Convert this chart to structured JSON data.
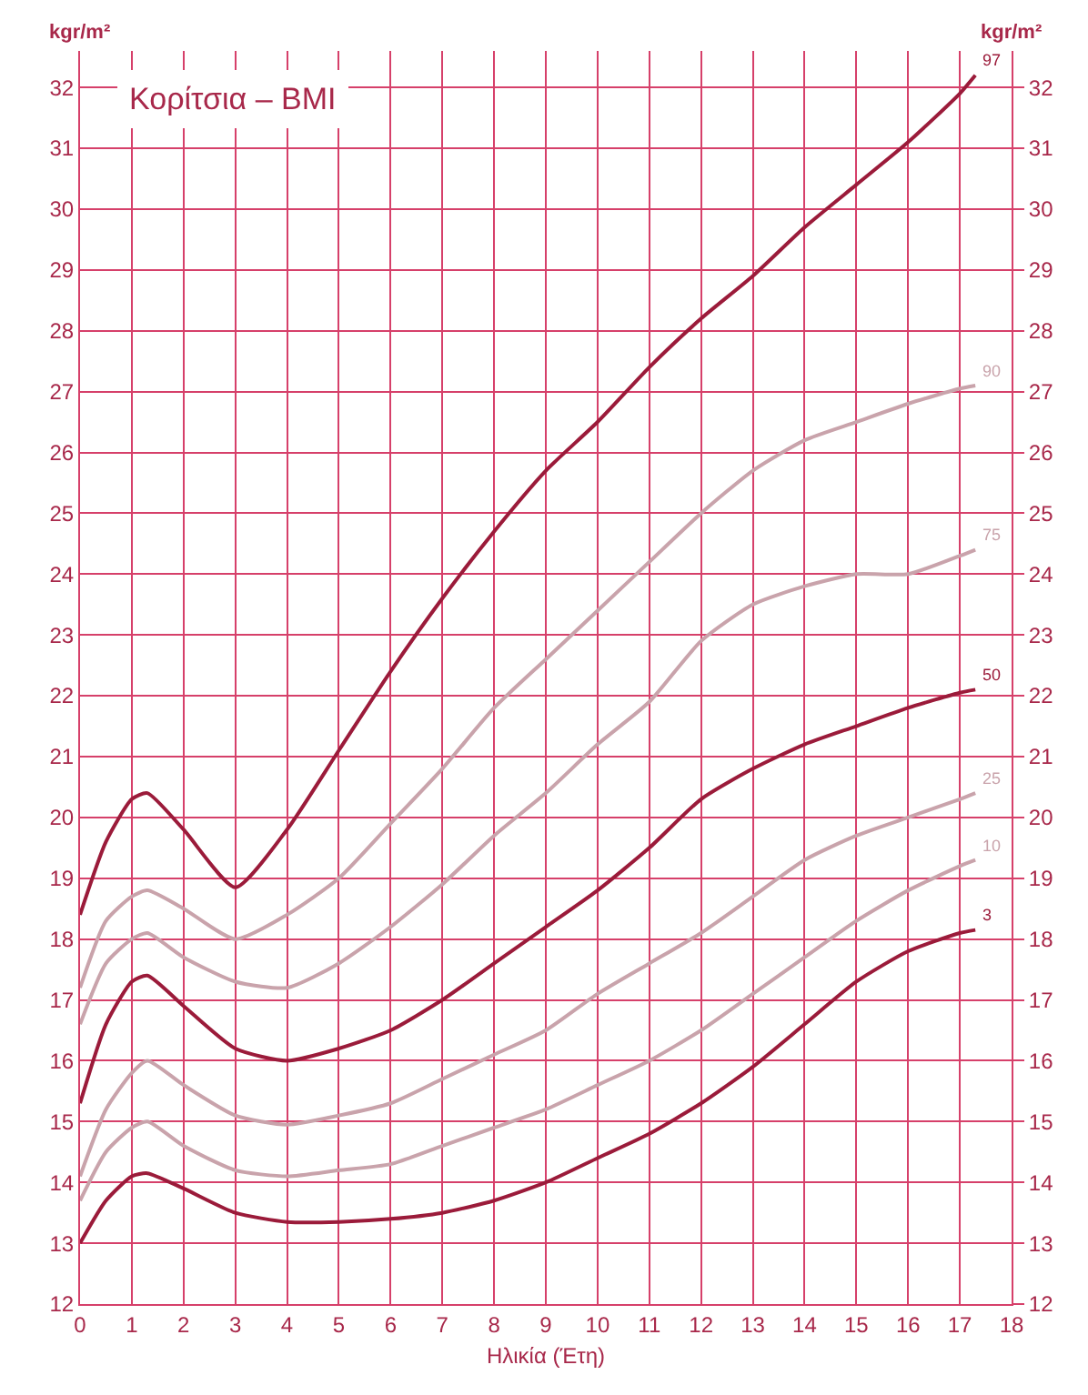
{
  "chart_data": {
    "type": "line",
    "title": "Κορίτσια – BMI",
    "xlabel": "Ηλικία (Έτη)",
    "ylabel": "kgr/m²",
    "y2label": "kgr/m²",
    "x": [
      0,
      0.5,
      1,
      1.3,
      2,
      3,
      4,
      5,
      6,
      7,
      8,
      9,
      10,
      11,
      12,
      13,
      14,
      15,
      16,
      17,
      17.3
    ],
    "xlim": [
      0,
      18
    ],
    "xticks": [
      0,
      1,
      2,
      3,
      4,
      5,
      6,
      7,
      8,
      9,
      10,
      11,
      12,
      13,
      14,
      15,
      16,
      17,
      18
    ],
    "ylim": [
      12,
      32.6
    ],
    "yticks": [
      12,
      13,
      14,
      15,
      16,
      17,
      18,
      19,
      20,
      21,
      22,
      23,
      24,
      25,
      26,
      27,
      28,
      29,
      30,
      31,
      32
    ],
    "y2lim": [
      12,
      32.6
    ],
    "y2ticks": [
      12,
      13,
      14,
      15,
      16,
      17,
      18,
      19,
      20,
      21,
      22,
      23,
      24,
      25,
      26,
      27,
      28,
      29,
      30,
      31,
      32
    ],
    "grid": true,
    "legend": false,
    "marker": "none",
    "line_style": "solid",
    "series": [
      {
        "name": "97",
        "color": "#9b1b3a",
        "values": [
          18.4,
          19.6,
          20.3,
          20.4,
          19.8,
          18.85,
          19.8,
          21.1,
          22.4,
          23.6,
          24.7,
          25.7,
          26.5,
          27.4,
          28.2,
          28.9,
          29.7,
          30.4,
          31.1,
          31.9,
          32.2
        ]
      },
      {
        "name": "90",
        "color": "#c9a3ab",
        "values": [
          17.2,
          18.3,
          18.7,
          18.8,
          18.5,
          18.0,
          18.4,
          19.0,
          19.9,
          20.8,
          21.8,
          22.6,
          23.4,
          24.2,
          25.0,
          25.7,
          26.2,
          26.5,
          26.8,
          27.05,
          27.1
        ]
      },
      {
        "name": "75",
        "color": "#c9a3ab",
        "values": [
          16.6,
          17.6,
          18.0,
          18.1,
          17.7,
          17.3,
          17.2,
          17.6,
          18.2,
          18.9,
          19.7,
          20.4,
          21.2,
          21.9,
          22.9,
          23.5,
          23.8,
          24.0,
          24.0,
          24.3,
          24.4
        ]
      },
      {
        "name": "50",
        "color": "#9b1b3a",
        "values": [
          15.3,
          16.6,
          17.3,
          17.4,
          16.9,
          16.2,
          16.0,
          16.2,
          16.5,
          17.0,
          17.6,
          18.2,
          18.8,
          19.5,
          20.3,
          20.8,
          21.2,
          21.5,
          21.8,
          22.05,
          22.1
        ]
      },
      {
        "name": "25",
        "color": "#c9a3ab",
        "values": [
          14.1,
          15.2,
          15.8,
          16.0,
          15.6,
          15.1,
          14.95,
          15.1,
          15.3,
          15.7,
          16.1,
          16.5,
          17.1,
          17.6,
          18.1,
          18.7,
          19.3,
          19.7,
          20.0,
          20.3,
          20.4
        ]
      },
      {
        "name": "10",
        "color": "#c9a3ab",
        "values": [
          13.7,
          14.5,
          14.9,
          15.0,
          14.6,
          14.2,
          14.1,
          14.2,
          14.3,
          14.6,
          14.9,
          15.2,
          15.6,
          16.0,
          16.5,
          17.1,
          17.7,
          18.3,
          18.8,
          19.2,
          19.3
        ]
      },
      {
        "name": "3",
        "color": "#9b1b3a",
        "values": [
          13.0,
          13.7,
          14.1,
          14.15,
          13.9,
          13.5,
          13.35,
          13.35,
          13.4,
          13.5,
          13.7,
          14.0,
          14.4,
          14.8,
          15.3,
          15.9,
          16.6,
          17.3,
          17.8,
          18.1,
          18.15
        ]
      }
    ]
  }
}
